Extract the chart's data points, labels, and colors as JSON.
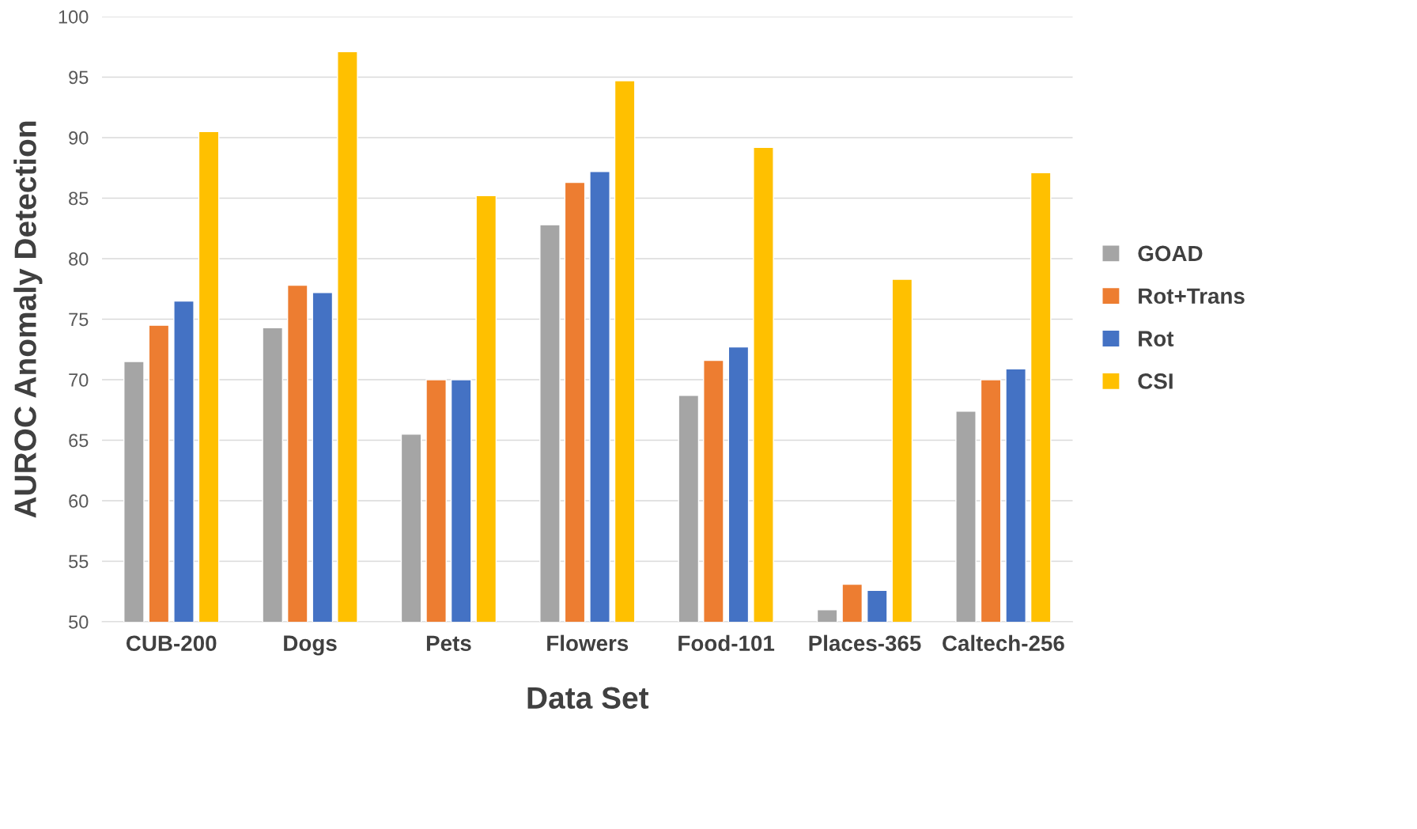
{
  "chart_data": {
    "type": "bar",
    "xlabel": "Data Set",
    "ylabel": "AUROC Anomaly Detection",
    "categories": [
      "CUB-200",
      "Dogs",
      "Pets",
      "Flowers",
      "Food-101",
      "Places-365",
      "Caltech-256"
    ],
    "series": [
      {
        "name": "GOAD",
        "color": "#a5a5a5",
        "values": [
          71.5,
          74.3,
          65.5,
          82.8,
          68.7,
          51.0,
          67.4
        ]
      },
      {
        "name": "Rot+Trans",
        "color": "#ed7d31",
        "values": [
          74.5,
          77.8,
          70.0,
          86.3,
          71.6,
          53.1,
          70.0
        ]
      },
      {
        "name": "Rot",
        "color": "#4472c4",
        "values": [
          76.5,
          77.2,
          70.0,
          87.2,
          72.7,
          52.6,
          70.9
        ]
      },
      {
        "name": "CSI",
        "color": "#ffc000",
        "values": [
          90.5,
          97.1,
          85.2,
          94.7,
          89.2,
          78.3,
          87.1
        ]
      }
    ],
    "ylim": [
      50,
      100
    ],
    "yticks": [
      50,
      55,
      60,
      65,
      70,
      75,
      80,
      85,
      90,
      95,
      100
    ],
    "grid": "y",
    "legend": "right"
  }
}
